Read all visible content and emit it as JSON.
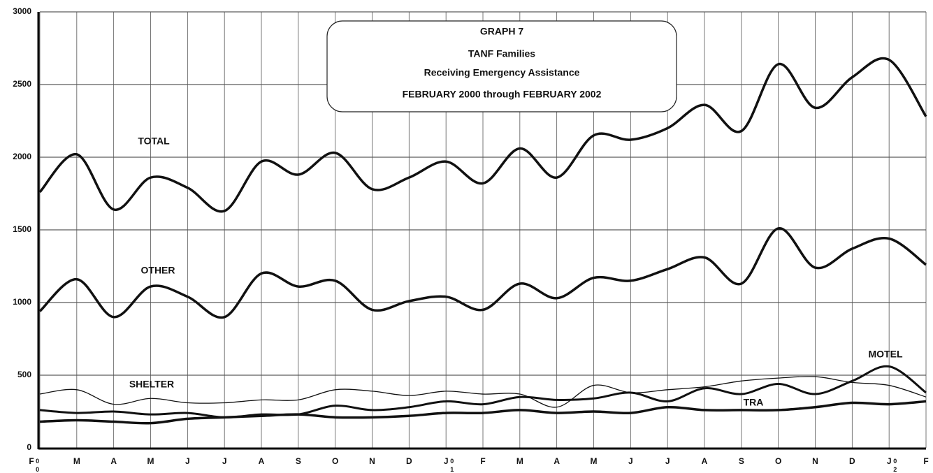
{
  "chart_data": {
    "type": "line",
    "title": [
      "GRAPH 7",
      "TANF Families",
      "Receiving Emergency Assistance",
      "FEBRUARY 2000 through FEBRUARY 2002"
    ],
    "categories": [
      "F",
      "M",
      "A",
      "M",
      "J",
      "J",
      "A",
      "S",
      "O",
      "N",
      "D",
      "J",
      "F",
      "M",
      "A",
      "M",
      "J",
      "J",
      "A",
      "S",
      "O",
      "N",
      "D",
      "J",
      "F"
    ],
    "year_labels": [
      "00",
      "01",
      "02"
    ],
    "ylim": [
      0,
      3000
    ],
    "yticks": [
      0,
      500,
      1000,
      1500,
      2000,
      2500,
      3000
    ],
    "grid": true,
    "series": [
      {
        "name": "TOTAL",
        "color": "#111",
        "width": 3.5,
        "values": [
          1760,
          2020,
          1640,
          1860,
          1790,
          1630,
          1970,
          1880,
          2030,
          1780,
          1860,
          1970,
          1820,
          2060,
          1860,
          2150,
          2120,
          2200,
          2360,
          2180,
          2640,
          2340,
          2550,
          2670,
          2280
        ]
      },
      {
        "name": "OTHER",
        "color": "#111",
        "width": 3.5,
        "values": [
          940,
          1160,
          900,
          1110,
          1040,
          900,
          1200,
          1110,
          1150,
          950,
          1010,
          1040,
          950,
          1130,
          1030,
          1170,
          1150,
          1230,
          1310,
          1130,
          1510,
          1240,
          1370,
          1440,
          1260
        ]
      },
      {
        "name": "SHELTER",
        "color": "#111",
        "width": 1.3,
        "values": [
          370,
          400,
          300,
          340,
          310,
          310,
          330,
          330,
          400,
          390,
          360,
          390,
          370,
          370,
          280,
          430,
          380,
          400,
          420,
          460,
          480,
          490,
          450,
          430,
          350
        ]
      },
      {
        "name": "MOTEL",
        "color": "#111",
        "width": 3,
        "values": [
          260,
          240,
          250,
          230,
          240,
          210,
          230,
          230,
          290,
          260,
          280,
          320,
          300,
          350,
          330,
          340,
          380,
          320,
          410,
          370,
          440,
          370,
          460,
          560,
          380
        ]
      },
      {
        "name": "TRA",
        "color": "#111",
        "width": 3.5,
        "values": [
          180,
          190,
          180,
          170,
          200,
          210,
          220,
          230,
          210,
          210,
          220,
          240,
          240,
          260,
          240,
          250,
          240,
          280,
          260,
          260,
          260,
          280,
          310,
          300,
          320
        ]
      }
    ]
  }
}
